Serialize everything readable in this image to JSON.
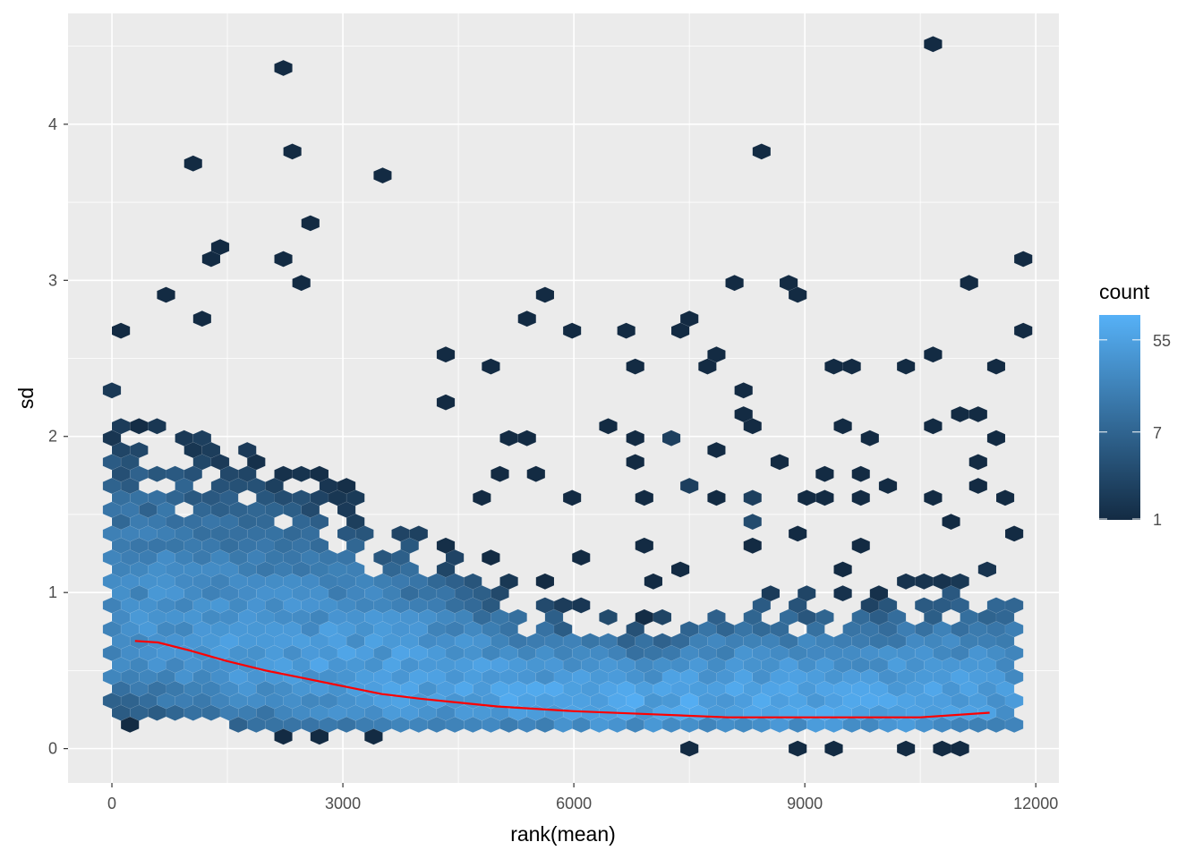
{
  "chart_data": {
    "type": "hexbin",
    "xlabel": "rank(mean)",
    "ylabel": "sd",
    "xlim": [
      -570,
      12300
    ],
    "ylim": [
      -0.22,
      4.71
    ],
    "x_ticks": [
      0,
      3000,
      6000,
      9000,
      12000
    ],
    "x_tick_labels": [
      "0",
      "3000",
      "6000",
      "9000",
      "12000"
    ],
    "y_ticks": [
      0,
      1,
      2,
      3,
      4
    ],
    "y_tick_labels": [
      "0",
      "1",
      "2",
      "3",
      "4"
    ],
    "grid": true,
    "legend": {
      "title": "count",
      "position": "right",
      "scale": "log",
      "range": [
        1,
        96
      ],
      "breaks": [
        1,
        7,
        55
      ],
      "break_labels": [
        "1",
        "7",
        "55"
      ],
      "low_color": "#132B43",
      "high_color": "#56B1F7"
    },
    "hex_bin_width": 234.4,
    "hex_bin_height": 0.0765,
    "dense_region_profile": {
      "x": [
        0,
        1000,
        2000,
        3000,
        4000,
        5000,
        6000,
        7000,
        8000,
        9000,
        10000,
        11000,
        11800
      ],
      "upper_sd": [
        2.3,
        2.1,
        1.9,
        1.7,
        1.45,
        1.1,
        0.95,
        0.85,
        1.05,
        1.05,
        1.05,
        1.15,
        1.2
      ],
      "lower_sd": [
        0.22,
        0.18,
        0.12,
        0.08,
        0.08,
        0.08,
        0.08,
        0.08,
        0.08,
        0.08,
        0.08,
        0.08,
        0.12
      ],
      "peak_count": [
        28,
        38,
        45,
        50,
        55,
        58,
        60,
        62,
        62,
        60,
        60,
        55,
        40
      ]
    },
    "isolated_hexes": [
      [
        10558,
        4.49,
        1
      ],
      [
        2116,
        4.34,
        1
      ],
      [
        942,
        3.72,
        1
      ],
      [
        2233,
        3.79,
        1
      ],
      [
        3407,
        3.64,
        1
      ],
      [
        8326,
        3.79,
        1
      ],
      [
        2465,
        3.33,
        1
      ],
      [
        1419,
        3.25,
        1
      ],
      [
        1302,
        3.17,
        1
      ],
      [
        2116,
        3.1,
        1
      ],
      [
        2465,
        3.02,
        1
      ],
      [
        11721,
        3.1,
        1
      ],
      [
        8186,
        2.95,
        1
      ],
      [
        8674,
        2.95,
        1
      ],
      [
        8791,
        2.87,
        1
      ],
      [
        11023,
        2.95,
        1
      ],
      [
        593,
        2.87,
        1
      ],
      [
        5395,
        2.79,
        1
      ],
      [
        5512,
        2.87,
        1
      ],
      [
        7500,
        2.79,
        1
      ],
      [
        1174,
        2.79,
        1
      ],
      [
        0,
        2.64,
        1
      ],
      [
        5860,
        2.64,
        1
      ],
      [
        6093,
        2.64,
        1
      ],
      [
        6570,
        2.64,
        1
      ],
      [
        7500,
        2.64,
        1
      ],
      [
        11721,
        2.64,
        1
      ],
      [
        4337,
        2.56,
        1
      ],
      [
        7849,
        2.56,
        1
      ],
      [
        10674,
        2.56,
        1
      ],
      [
        6802,
        2.48,
        1
      ],
      [
        4814,
        2.41,
        1
      ],
      [
        7849,
        2.41,
        1
      ],
      [
        9488,
        2.41,
        1
      ],
      [
        9721,
        2.41,
        1
      ],
      [
        10209,
        2.41,
        1
      ],
      [
        11488,
        2.48,
        1
      ],
      [
        8186,
        2.33,
        1
      ],
      [
        4337,
        2.25,
        1
      ],
      [
        8186,
        2.17,
        1
      ],
      [
        8326,
        2.1,
        1
      ],
      [
        6453,
        2.1,
        1
      ],
      [
        9488,
        2.1,
        1
      ],
      [
        10674,
        2.1,
        1
      ],
      [
        11023,
        2.17,
        1
      ],
      [
        11256,
        2.17,
        1
      ],
      [
        7267,
        2.02,
        2
      ],
      [
        6802,
        2.02,
        1
      ],
      [
        5163,
        2.02,
        1
      ],
      [
        5395,
        2.02,
        1
      ],
      [
        7849,
        1.94,
        1
      ],
      [
        9837,
        2.02,
        1
      ],
      [
        11488,
        2.02,
        1
      ],
      [
        6802,
        1.86,
        1
      ],
      [
        8674,
        1.86,
        1
      ],
      [
        11256,
        1.86,
        1
      ],
      [
        5047,
        1.79,
        1
      ],
      [
        5512,
        1.79,
        1
      ],
      [
        9256,
        1.79,
        1
      ],
      [
        9721,
        1.79,
        1
      ],
      [
        4814,
        1.63,
        1
      ],
      [
        5977,
        1.63,
        1
      ],
      [
        6919,
        1.63,
        1
      ],
      [
        7500,
        1.71,
        2
      ],
      [
        7849,
        1.63,
        1
      ],
      [
        8326,
        1.63,
        2
      ],
      [
        9023,
        1.63,
        1
      ],
      [
        9256,
        1.63,
        1
      ],
      [
        9721,
        1.63,
        1
      ],
      [
        10070,
        1.71,
        1
      ],
      [
        10674,
        1.63,
        1
      ],
      [
        11256,
        1.71,
        1
      ],
      [
        11605,
        1.63,
        1
      ],
      [
        10907,
        1.48,
        1
      ],
      [
        9023,
        1.4,
        1
      ],
      [
        11721,
        1.4,
        1
      ],
      [
        8326,
        1.48,
        3
      ],
      [
        6919,
        1.32,
        1
      ],
      [
        8326,
        1.32,
        1
      ],
      [
        9721,
        1.32,
        1
      ],
      [
        6093,
        1.25,
        1
      ],
      [
        4930,
        1.25,
        1
      ],
      [
        5512,
        1.1,
        1
      ],
      [
        6919,
        1.1,
        1
      ],
      [
        7500,
        1.17,
        1
      ],
      [
        9488,
        1.17,
        1
      ],
      [
        7500,
        0.0,
        1
      ],
      [
        8907,
        0.0,
        1
      ],
      [
        9372,
        0.0,
        1
      ],
      [
        10326,
        0.0,
        1
      ],
      [
        10791,
        0.0,
        1
      ],
      [
        11023,
        0.0,
        1
      ],
      [
        233,
        0.15,
        1
      ],
      [
        2698,
        0.08,
        1
      ],
      [
        3407,
        0.08,
        1
      ],
      [
        2233,
        0.08,
        1
      ]
    ],
    "trend_line": {
      "color": "#FF0000",
      "x": [
        300,
        600,
        1000,
        1500,
        2000,
        2500,
        3000,
        3500,
        4000,
        5000,
        6000,
        7000,
        8000,
        9000,
        10000,
        10500,
        11400
      ],
      "y": [
        0.69,
        0.68,
        0.63,
        0.56,
        0.5,
        0.45,
        0.4,
        0.35,
        0.32,
        0.27,
        0.24,
        0.22,
        0.2,
        0.2,
        0.2,
        0.2,
        0.23
      ]
    }
  }
}
